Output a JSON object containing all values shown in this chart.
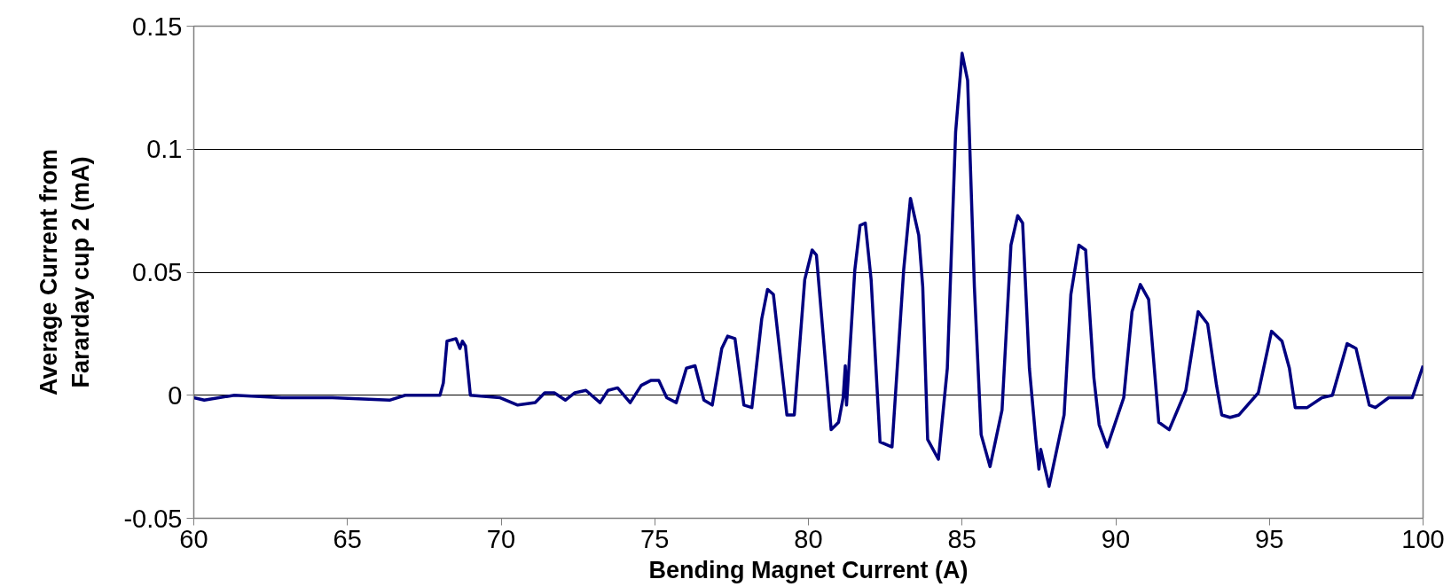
{
  "chart_data": {
    "type": "line",
    "xlabel": "Bending Magnet Current (A)",
    "ylabel": "Average Current from\nFararday cup 2 (mA)",
    "xlim": [
      60,
      100
    ],
    "xticks": [
      60,
      65,
      70,
      75,
      80,
      85,
      90,
      95,
      100
    ],
    "ylim": [
      -0.05,
      0.15
    ],
    "yticks": [
      -0.05,
      0,
      0.05,
      0.1,
      0.15
    ],
    "grid": "y",
    "marker": "none",
    "line_style": "solid",
    "series": [
      {
        "color": "#000080",
        "x": [
          60,
          60.34,
          61.32,
          62.86,
          64.51,
          66.37,
          66.88,
          68.01,
          68.12,
          68.24,
          68.53,
          68.66,
          68.74,
          68.84,
          69.0,
          69.97,
          70.54,
          71.11,
          71.42,
          71.73,
          72.09,
          72.4,
          72.76,
          73.22,
          73.48,
          73.79,
          74.2,
          74.56,
          74.87,
          75.13,
          75.39,
          75.7,
          76.03,
          76.31,
          76.6,
          76.87,
          77.18,
          77.37,
          77.61,
          77.9,
          78.16,
          78.48,
          78.67,
          78.86,
          79.3,
          79.54,
          79.88,
          80.12,
          80.26,
          80.74,
          80.98,
          81.13,
          81.2,
          81.24,
          81.51,
          81.68,
          81.85,
          82.04,
          82.33,
          82.72,
          83.1,
          83.32,
          83.59,
          83.72,
          83.88,
          84.23,
          84.52,
          84.79,
          85.0,
          85.18,
          85.4,
          85.62,
          85.91,
          86.3,
          86.59,
          86.81,
          86.97,
          87.19,
          87.4,
          87.5,
          87.56,
          87.83,
          88.32,
          88.54,
          88.8,
          89.02,
          89.29,
          89.46,
          89.72,
          90.26,
          90.53,
          90.8,
          91.07,
          91.4,
          91.74,
          92.28,
          92.68,
          92.99,
          93.28,
          93.45,
          93.72,
          94.01,
          94.64,
          95.07,
          95.41,
          95.65,
          95.84,
          96.23,
          96.71,
          97.05,
          97.53,
          97.82,
          98.25,
          98.45,
          98.88,
          99.65,
          100
        ],
        "values": [
          -0.001,
          -0.002,
          0,
          -0.001,
          -0.001,
          -0.002,
          0,
          0,
          0.005,
          0.022,
          0.023,
          0.019,
          0.022,
          0.02,
          0,
          -0.001,
          -0.004,
          -0.003,
          0.001,
          0.001,
          -0.002,
          0.001,
          0.002,
          -0.003,
          0.002,
          0.003,
          -0.003,
          0.004,
          0.006,
          0.006,
          -0.001,
          -0.003,
          0.011,
          0.012,
          -0.002,
          -0.004,
          0.019,
          0.024,
          0.023,
          -0.004,
          -0.005,
          0.031,
          0.043,
          0.041,
          -0.008,
          -0.008,
          0.047,
          0.059,
          0.057,
          -0.014,
          -0.011,
          -0.001,
          0.012,
          -0.004,
          0.051,
          0.069,
          0.07,
          0.047,
          -0.019,
          -0.021,
          0.051,
          0.08,
          0.065,
          0.044,
          -0.018,
          -0.026,
          0.011,
          0.107,
          0.139,
          0.128,
          0.044,
          -0.016,
          -0.029,
          -0.006,
          0.061,
          0.073,
          0.07,
          0.011,
          -0.018,
          -0.03,
          -0.022,
          -0.037,
          -0.008,
          0.041,
          0.061,
          0.059,
          0.007,
          -0.012,
          -0.021,
          -0.001,
          0.034,
          0.045,
          0.039,
          -0.011,
          -0.014,
          0.002,
          0.034,
          0.029,
          0.004,
          -0.008,
          -0.009,
          -0.008,
          0.001,
          0.026,
          0.022,
          0.011,
          -0.005,
          -0.005,
          -0.001,
          0,
          0.021,
          0.019,
          -0.004,
          -0.005,
          -0.001,
          -0.001,
          0.012
        ]
      }
    ]
  }
}
